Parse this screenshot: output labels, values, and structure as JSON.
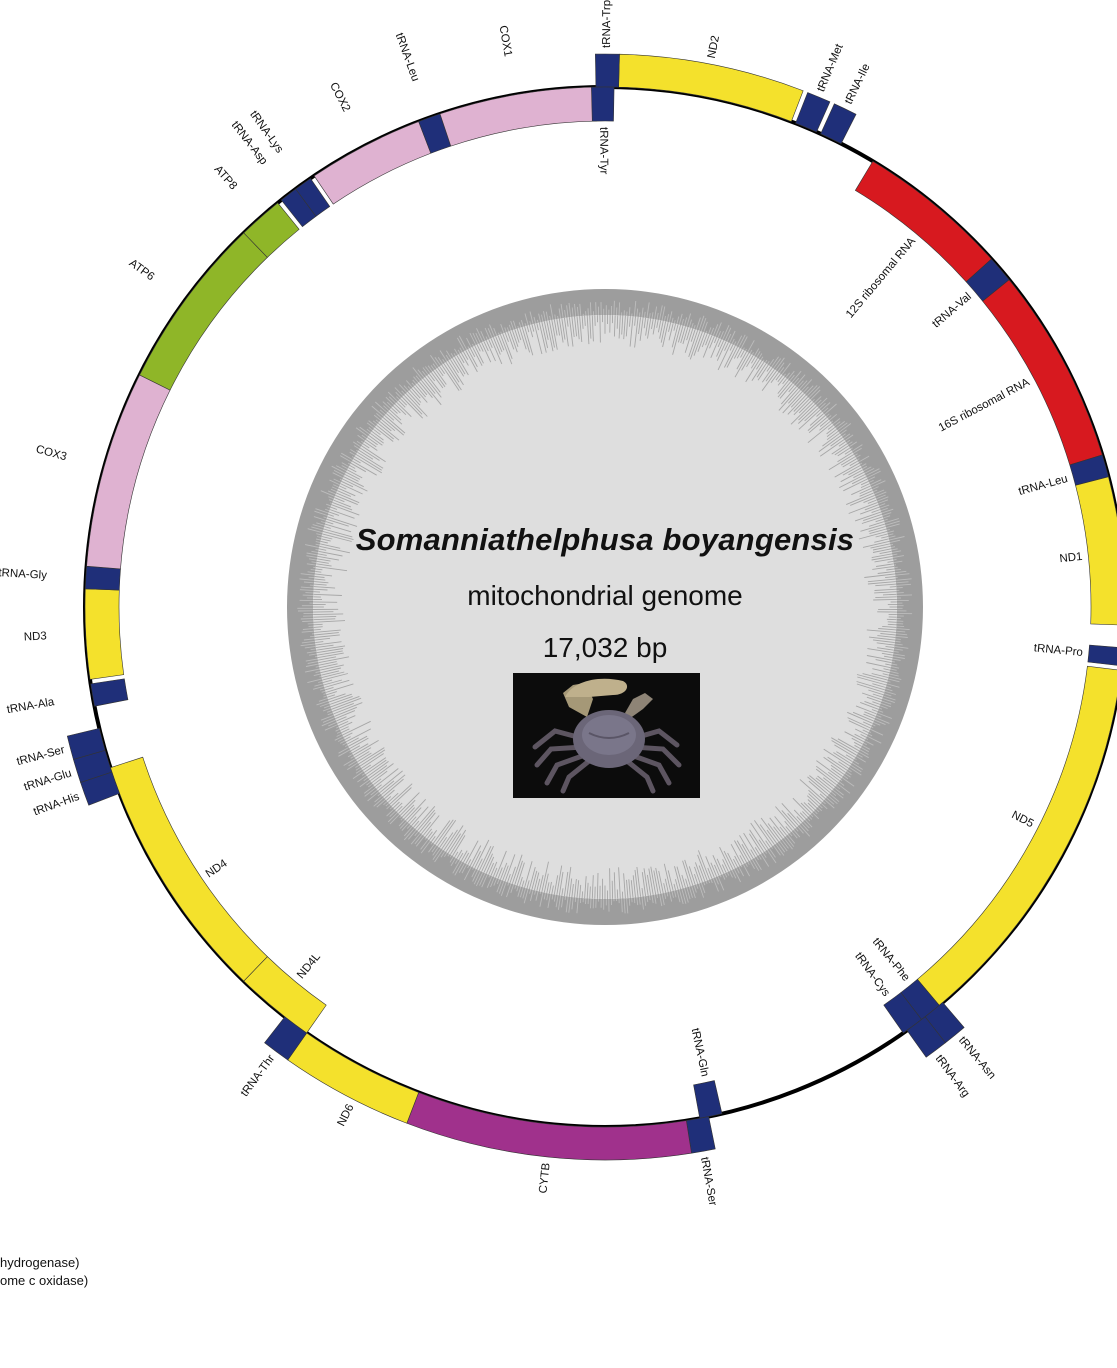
{
  "title": {
    "species": "Somanniathelphusa boyangensis",
    "subtitle": "mitochondrial genome",
    "size": "17,032 bp"
  },
  "colors": {
    "nadh": "#f4e12c",
    "cox": "#dfb2d1",
    "atp": "#8fb628",
    "cytb": "#a0318c",
    "rrna": "#d7191f",
    "trna": "#1f2f79",
    "gc_outer": "#9d9d9d",
    "gc_inner": "#dedede",
    "backbone": "#000000"
  },
  "icons": {
    "photo": "crab-photo"
  },
  "legend": [
    "hydrogenase)",
    "ome c oxidase)"
  ],
  "genes": [
    {
      "name": "ND2",
      "type": "nadh",
      "strand": "outer",
      "start": 1.5,
      "end": 21
    },
    {
      "name": "tRNA-Met",
      "type": "trna",
      "strand": "outer",
      "start": 21.5,
      "end": 24
    },
    {
      "name": "tRNA-Ile",
      "type": "trna",
      "strand": "outer",
      "start": 24.5,
      "end": 27
    },
    {
      "name": "12S ribosomal RNA",
      "type": "rrna",
      "strand": "inner",
      "start": 31,
      "end": 48
    },
    {
      "name": "tRNA-Val",
      "type": "trna",
      "strand": "inner",
      "start": 48,
      "end": 51
    },
    {
      "name": "16S ribosomal RNA",
      "type": "rrna",
      "strand": "inner",
      "start": 51,
      "end": 73
    },
    {
      "name": "tRNA-Leu",
      "type": "trna",
      "strand": "inner",
      "start": 73,
      "end": 75.5
    },
    {
      "name": "ND1",
      "type": "nadh",
      "strand": "inner",
      "start": 75.5,
      "end": 92
    },
    {
      "name": "tRNA-Pro",
      "type": "trna",
      "strand": "inner",
      "start": 94.5,
      "end": 96.5
    },
    {
      "name": "ND5",
      "type": "nadh",
      "strand": "inner",
      "start": 97,
      "end": 140
    },
    {
      "name": "tRNA-Phe",
      "type": "trna",
      "strand": "inner",
      "start": 140,
      "end": 142.5
    },
    {
      "name": "tRNA-Cys",
      "type": "trna",
      "strand": "inner",
      "start": 142.5,
      "end": 145
    },
    {
      "name": "tRNA-Asn",
      "type": "trna",
      "strand": "outer",
      "start": 139.5,
      "end": 142
    },
    {
      "name": "tRNA-Arg",
      "type": "trna",
      "strand": "outer",
      "start": 142,
      "end": 144.5
    },
    {
      "name": "tRNA-Gln",
      "type": "trna",
      "strand": "inner",
      "start": 167,
      "end": 169.5
    },
    {
      "name": "tRNA-Ser",
      "type": "trna",
      "strand": "outer",
      "start": 168.5,
      "end": 171
    },
    {
      "name": "CYTB",
      "type": "cytb",
      "strand": "outer",
      "start": 171,
      "end": 201
    },
    {
      "name": "ND6",
      "type": "nadh",
      "strand": "outer",
      "start": 201,
      "end": 215
    },
    {
      "name": "tRNA-Thr",
      "type": "trna",
      "strand": "outer",
      "start": 215,
      "end": 218
    },
    {
      "name": "ND4L",
      "type": "nadh",
      "strand": "inner",
      "start": 215,
      "end": 224
    },
    {
      "name": "ND4",
      "type": "nadh",
      "strand": "inner",
      "start": 224,
      "end": 252
    },
    {
      "name": "tRNA-His",
      "type": "trna",
      "strand": "outer",
      "start": 249,
      "end": 251.5
    },
    {
      "name": "tRNA-Glu",
      "type": "trna",
      "strand": "outer",
      "start": 251.5,
      "end": 254
    },
    {
      "name": "tRNA-Ser",
      "type": "trna",
      "strand": "outer",
      "start": 254,
      "end": 256.5
    },
    {
      "name": "tRNA-Ala",
      "type": "trna",
      "strand": "inner",
      "start": 259,
      "end": 261.5
    },
    {
      "name": "ND3",
      "type": "nadh",
      "strand": "inner",
      "start": 262,
      "end": 272
    },
    {
      "name": "tRNA-Gly",
      "type": "trna",
      "strand": "inner",
      "start": 272,
      "end": 274.5
    },
    {
      "name": "COX3",
      "type": "cox",
      "strand": "inner",
      "start": 274.5,
      "end": 296.5
    },
    {
      "name": "ATP6",
      "type": "atp",
      "strand": "inner",
      "start": 296.5,
      "end": 316
    },
    {
      "name": "ATP8",
      "type": "atp",
      "strand": "inner",
      "start": 316,
      "end": 321
    },
    {
      "name": "tRNA-Asp",
      "type": "trna",
      "strand": "inner",
      "start": 321.5,
      "end": 323.5
    },
    {
      "name": "tRNA-Lys",
      "type": "trna",
      "strand": "inner",
      "start": 323.5,
      "end": 325.5
    },
    {
      "name": "COX2",
      "type": "cox",
      "strand": "inner",
      "start": 326,
      "end": 339
    },
    {
      "name": "tRNA-Leu",
      "type": "trna",
      "strand": "inner",
      "start": 339,
      "end": 341.5
    },
    {
      "name": "COX1",
      "type": "cox",
      "strand": "inner",
      "start": 341.5,
      "end": 359
    },
    {
      "name": "tRNA-Trp",
      "type": "trna",
      "strand": "outer",
      "start": 359,
      "end": 361.5
    },
    {
      "name": "tRNA-Tyr",
      "type": "trna",
      "strand": "inner",
      "start": 358.5,
      "end": 361
    }
  ],
  "labels": [
    {
      "text": "ND2",
      "angle": 11,
      "dir": "out"
    },
    {
      "text": "tRNA-Met",
      "angle": 22.7,
      "dir": "out"
    },
    {
      "text": "tRNA-Ile",
      "angle": 25.8,
      "dir": "out"
    },
    {
      "text": "12S ribosomal RNA",
      "angle": 40,
      "dir": "in"
    },
    {
      "text": "tRNA-Val",
      "angle": 49.5,
      "dir": "in"
    },
    {
      "text": "16S ribosomal RNA",
      "angle": 62,
      "dir": "in"
    },
    {
      "text": "tRNA-Leu",
      "angle": 74.5,
      "dir": "in"
    },
    {
      "text": "ND1",
      "angle": 84,
      "dir": "in"
    },
    {
      "text": "tRNA-Pro",
      "angle": 95.5,
      "dir": "in"
    },
    {
      "text": "ND5",
      "angle": 117,
      "dir": "in"
    },
    {
      "text": "tRNA-Phe",
      "angle": 141,
      "dir": "in"
    },
    {
      "text": "tRNA-Cys",
      "angle": 144,
      "dir": "in"
    },
    {
      "text": "tRNA-Asn",
      "angle": 140.5,
      "dir": "out"
    },
    {
      "text": "tRNA-Arg",
      "angle": 143.5,
      "dir": "out"
    },
    {
      "text": "tRNA-Gln",
      "angle": 168,
      "dir": "in"
    },
    {
      "text": "tRNA-Ser",
      "angle": 169.8,
      "dir": "out"
    },
    {
      "text": "CYTB",
      "angle": 186,
      "dir": "out"
    },
    {
      "text": "ND6",
      "angle": 207,
      "dir": "out"
    },
    {
      "text": "tRNA-Thr",
      "angle": 216.5,
      "dir": "out"
    },
    {
      "text": "ND4L",
      "angle": 219.5,
      "dir": "in"
    },
    {
      "text": "ND4",
      "angle": 236,
      "dir": "in"
    },
    {
      "text": "tRNA-His",
      "angle": 250.2,
      "dir": "out"
    },
    {
      "text": "tRNA-Glu",
      "angle": 252.7,
      "dir": "out"
    },
    {
      "text": "tRNA-Ser",
      "angle": 255.2,
      "dir": "out"
    },
    {
      "text": "tRNA-Ala",
      "angle": 260.2,
      "dir": "out"
    },
    {
      "text": "ND3",
      "angle": 267,
      "dir": "out"
    },
    {
      "text": "tRNA-Gly",
      "angle": 273.2,
      "dir": "out"
    },
    {
      "text": "COX3",
      "angle": 285.5,
      "dir": "out"
    },
    {
      "text": "ATP6",
      "angle": 306,
      "dir": "out"
    },
    {
      "text": "ATP8",
      "angle": 318.5,
      "dir": "out"
    },
    {
      "text": "tRNA-Asp",
      "angle": 322.5,
      "dir": "out"
    },
    {
      "text": "tRNA-Lys",
      "angle": 324.5,
      "dir": "out"
    },
    {
      "text": "COX2",
      "angle": 332.5,
      "dir": "out"
    },
    {
      "text": "tRNA-Leu",
      "angle": 340.2,
      "dir": "out"
    },
    {
      "text": "COX1",
      "angle": 350,
      "dir": "out"
    },
    {
      "text": "tRNA-Trp",
      "angle": 360.2,
      "dir": "out"
    },
    {
      "text": "tRNA-Tyr",
      "angle": 359.8,
      "dir": "in"
    }
  ]
}
